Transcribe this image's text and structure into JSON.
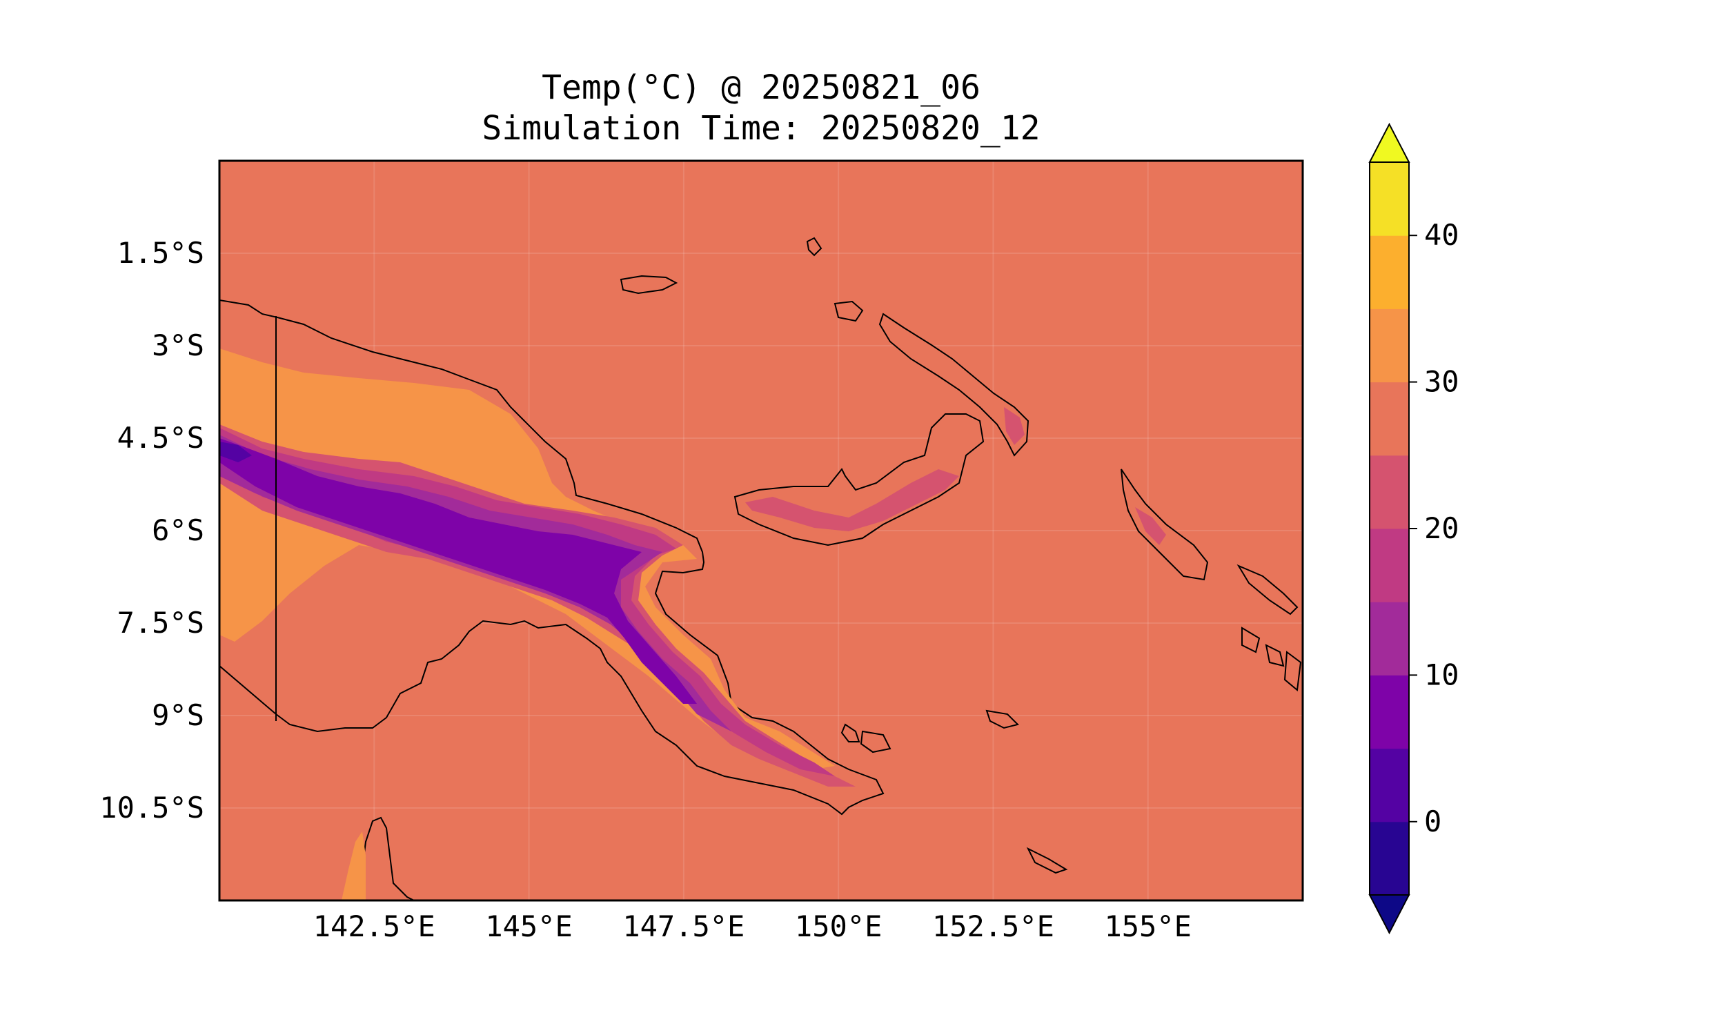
{
  "figure": {
    "title_line1": "Temp(°C) @ 20250821_06",
    "title_line2": "Simulation Time: 20250820_12"
  },
  "map": {
    "projection": "PlateCarree",
    "extent_lon": [
      140.0,
      157.5
    ],
    "extent_lat": [
      -12.0,
      0.0
    ],
    "x_tick_labels": [
      "142.5°E",
      "145°E",
      "147.5°E",
      "150°E",
      "152.5°E",
      "155°E"
    ],
    "y_tick_labels": [
      "1.5°S",
      "3°S",
      "4.5°S",
      "6°S",
      "7.5°S",
      "9°S",
      "10.5°S"
    ],
    "gridlines": true,
    "ocean_fill": "#e8755a",
    "coastline_color": "#000000"
  },
  "colorbar": {
    "colormap": "plasma",
    "extend": "both",
    "levels": [
      -5,
      0,
      5,
      10,
      15,
      20,
      25,
      30,
      35,
      40,
      45
    ],
    "tick_labels": [
      "0",
      "10",
      "20",
      "30",
      "40"
    ],
    "under_color": "#0d0887",
    "over_color": "#f0f921",
    "colors": [
      "#280592",
      "#5402a3",
      "#7e03a8",
      "#a22b9a",
      "#c03a83",
      "#d5536f",
      "#e8755a",
      "#f69448",
      "#fcaf2e",
      "#f5e026"
    ]
  }
}
